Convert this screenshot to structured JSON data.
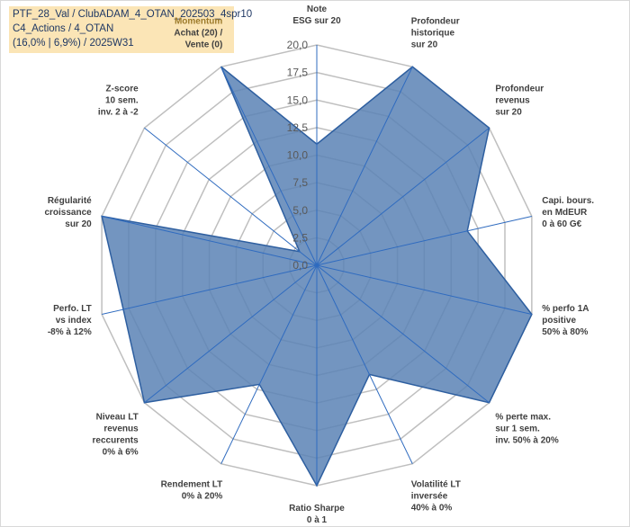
{
  "title_box": {
    "line1": "PTF_28_Val / ClubADAM_4_OTAN_202503_4spr10",
    "line2": "C4_Actions / 4_OTAN",
    "line3": "(16,0% | 6,9%) / 2025W31"
  },
  "colors": {
    "fill": "#5b83b5",
    "stroke": "#2e5fa0",
    "grid": "#bfbfbf",
    "spoke": "#2f6bbf",
    "title_bg": "#fbe5b6",
    "highlight_label": "#9c7a2a"
  },
  "chart_data": {
    "type": "radar",
    "rmin": 0,
    "rmax": 20,
    "tick_step": 2.5,
    "tick_labels": [
      "0,0",
      "2,5",
      "5,0",
      "7,5",
      "10,0",
      "12,5",
      "15,0",
      "17,5",
      "20,0"
    ],
    "axes": [
      {
        "label": [
          "Note",
          "ESG sur 20"
        ],
        "value": 11
      },
      {
        "label": [
          "Profondeur",
          "historique",
          "sur 20"
        ],
        "value": 20
      },
      {
        "label": [
          "Profondeur",
          "revenus",
          "sur 20"
        ],
        "value": 20
      },
      {
        "label": [
          "Capi. bours.",
          "en MdEUR",
          "0 à 60 G€"
        ],
        "value": 14
      },
      {
        "label": [
          "% perfo 1A",
          "positive",
          "50% à 80%"
        ],
        "value": 20
      },
      {
        "label": [
          "% perte max.",
          "sur 1 sem.",
          "inv. 50% à 20%"
        ],
        "value": 20
      },
      {
        "label": [
          "Volatilité LT",
          "inversée",
          "40% à 0%"
        ],
        "value": 11
      },
      {
        "label": [
          "Ratio Sharpe",
          "0 à 1"
        ],
        "value": 20
      },
      {
        "label": [
          "Rendement LT",
          "0% à 20%"
        ],
        "value": 12
      },
      {
        "label": [
          "Niveau LT",
          "revenus",
          "reccurents",
          "0% à 6%"
        ],
        "value": 20
      },
      {
        "label": [
          "Perfo. LT",
          "vs index",
          "-8% à 12%"
        ],
        "value": 18
      },
      {
        "label": [
          "Régularité",
          "croissance",
          "sur 20"
        ],
        "value": 20
      },
      {
        "label": [
          "Z-score",
          "10 sem.",
          "inv. 2 à -2"
        ],
        "value": 2
      },
      {
        "label": [
          "Momentum",
          "Achat (20) /",
          "Vente (0)"
        ],
        "value": 20
      }
    ]
  }
}
